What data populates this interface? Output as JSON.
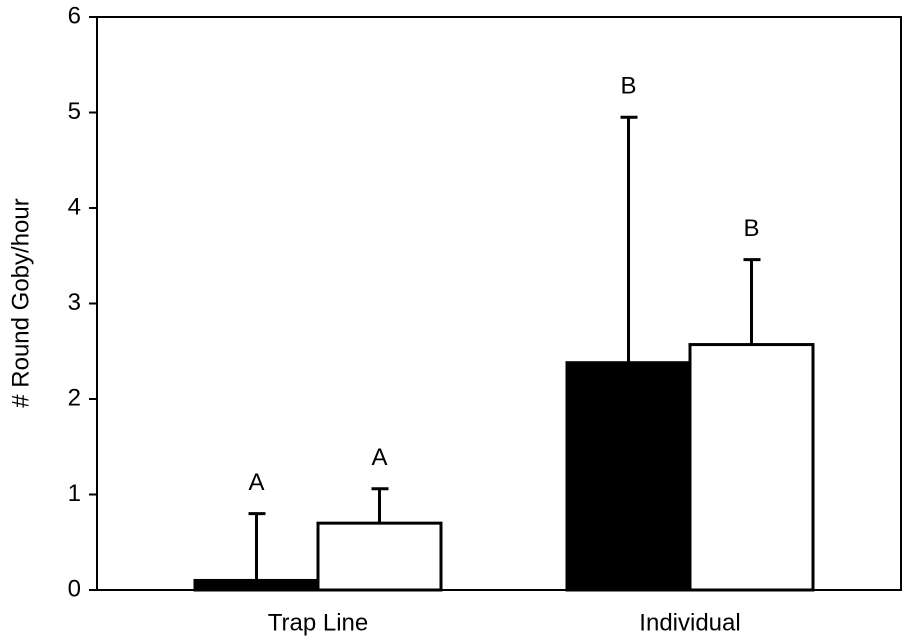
{
  "chart_data": {
    "type": "bar",
    "ylabel": "# Round Goby/hour",
    "categories": [
      "Trap Line",
      "Individual"
    ],
    "series": [
      {
        "color": "#000000",
        "edgecolor": "#000000",
        "values": [
          0.1,
          2.38
        ],
        "errors": [
          0.7,
          2.57
        ],
        "letters": [
          "A",
          "B"
        ]
      },
      {
        "color": "#ffffff",
        "edgecolor": "#000000",
        "values": [
          0.7,
          2.57
        ],
        "errors": [
          0.36,
          0.89
        ],
        "letters": [
          "A",
          "B"
        ]
      }
    ],
    "ylim": [
      0,
      6
    ],
    "yticks": [
      0,
      1,
      2,
      3,
      4,
      5,
      6
    ]
  }
}
